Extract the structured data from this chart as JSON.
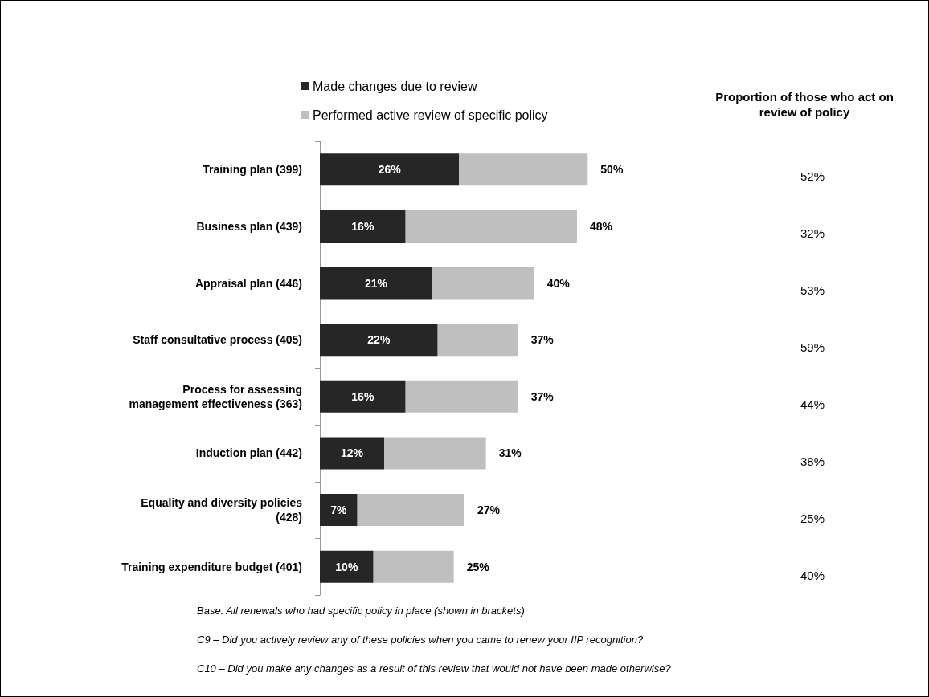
{
  "chart_data": [
    {
      "type": "bar",
      "orientation": "horizontal",
      "stacked": true,
      "legend": "top",
      "categories": [
        "Training plan (399)",
        "Business plan (439)",
        "Appraisal plan (446)",
        "Staff consultative process (405)",
        "Process for assessing\nmanagement effectiveness (363)",
        "Induction plan (442)",
        "Equality and diversity policies\n(428)",
        "Training expenditure budget (401)"
      ],
      "series": [
        {
          "name": "Made changes due to review",
          "color": "#262626",
          "values": [
            26,
            16,
            21,
            22,
            16,
            12,
            7,
            10
          ],
          "value_labels": [
            "26%",
            "16%",
            "21%",
            "22%",
            "16%",
            "12%",
            "7%",
            "10%"
          ]
        },
        {
          "name": "Performed active review of specific policy",
          "color": "#bfbfbf",
          "values": [
            24,
            32,
            19,
            15,
            21,
            19,
            20,
            15
          ]
        }
      ],
      "totals": [
        "50%",
        "48%",
        "40%",
        "37%",
        "37%",
        "31%",
        "27%",
        "25%"
      ],
      "annotations": [
        "Base: All renewals who had specific policy in place (shown in brackets)",
        "C9 – Did you actively review any of these policies when you came to renew your IIP recognition?",
        "C10 – Did you make any changes as a result of this review that would not have been made otherwise?"
      ]
    },
    {
      "type": "other",
      "title": "Proportion of those who act on review of policy",
      "annotations": [
        "52%",
        "32%",
        "53%",
        "59%",
        "44%",
        "38%",
        "25%",
        "40%"
      ]
    }
  ]
}
